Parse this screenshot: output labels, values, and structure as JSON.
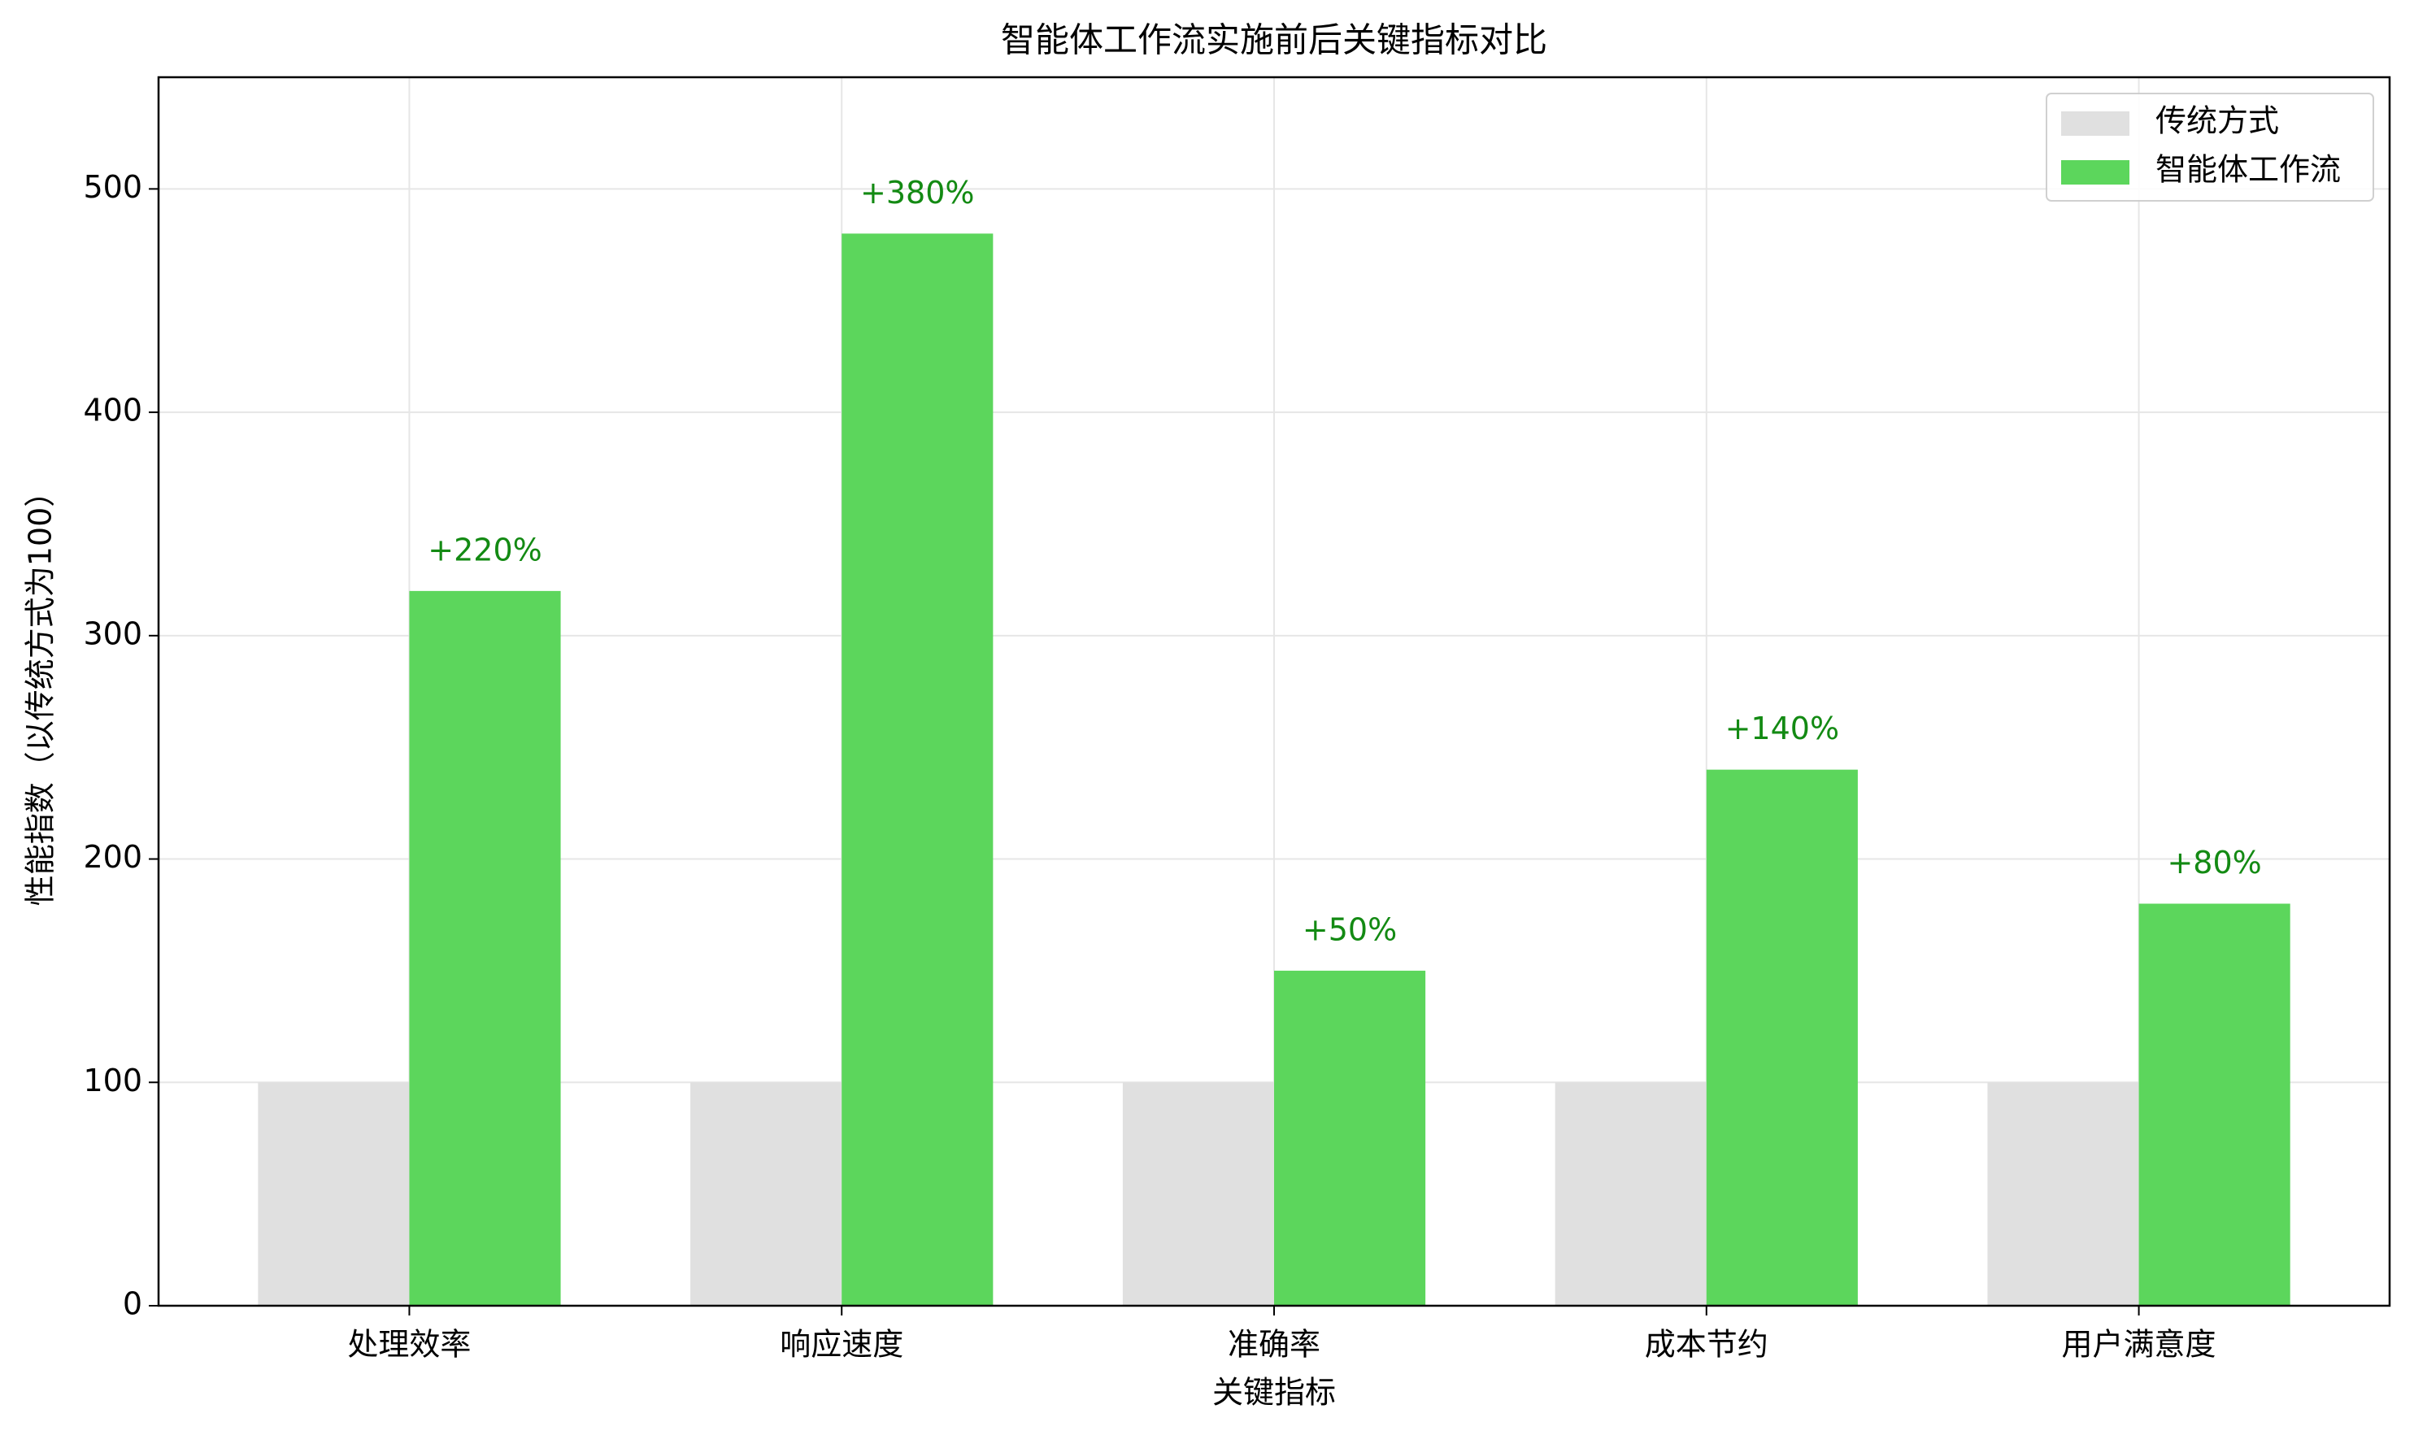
{
  "chart_data": {
    "type": "bar",
    "title": "智能体工作流实施前后关键指标对比",
    "xlabel": "关键指标",
    "ylabel": "性能指数（以传统方式为100）",
    "categories": [
      "处理效率",
      "响应速度",
      "准确率",
      "成本节约",
      "用户满意度"
    ],
    "series": [
      {
        "name": "传统方式",
        "color": "#e0e0e0",
        "values": [
          100,
          100,
          100,
          100,
          100
        ]
      },
      {
        "name": "智能体工作流",
        "color": "#5cd65c",
        "values": [
          320,
          480,
          150,
          240,
          180
        ]
      }
    ],
    "annotations": [
      "+220%",
      "+380%",
      "+50%",
      "+140%",
      "+80%"
    ],
    "annotation_color": "#138a13",
    "ylim": [
      0,
      550
    ],
    "yticks": [
      0,
      100,
      200,
      300,
      400,
      500
    ],
    "grid": true,
    "legend": "upper right"
  }
}
